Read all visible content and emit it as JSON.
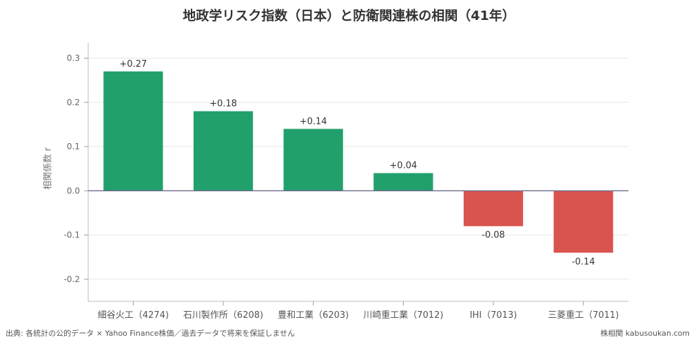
{
  "title": "地政学リスク指数（日本）と防衛関連株の相関（41年）",
  "footer": {
    "source": "出典: 各統計の公的データ × Yahoo Finance株価／過去データで将来を保証しません",
    "brand": "株相関 kabusoukan.com"
  },
  "chart_data": {
    "type": "bar",
    "title": "地政学リスク指数（日本）と防衛関連株の相関（41年）",
    "xlabel": "",
    "ylabel": "相関係数 r",
    "ylim": [
      -0.2,
      0.3
    ],
    "yticks": [
      -0.2,
      -0.1,
      0.0,
      0.1,
      0.2,
      0.3
    ],
    "ytick_labels": [
      "-0.2",
      "-0.1",
      "0.0",
      "0.1",
      "0.2",
      "0.3"
    ],
    "grid": true,
    "categories": [
      "細谷火工（4274)",
      "石川製作所（6208)",
      "豊和工業（6203)",
      "川崎重工業（7012)",
      "IHI（7013)",
      "三菱重工（7011)"
    ],
    "values": [
      0.27,
      0.18,
      0.14,
      0.04,
      -0.08,
      -0.14
    ],
    "data_labels": [
      "+0.27",
      "+0.18",
      "+0.14",
      "+0.04",
      "-0.08",
      "-0.14"
    ],
    "colors": {
      "positive": "#22a06b",
      "negative": "#d9534f",
      "zero_line": "#6b6b8a",
      "grid": "#e6e6e6"
    }
  }
}
